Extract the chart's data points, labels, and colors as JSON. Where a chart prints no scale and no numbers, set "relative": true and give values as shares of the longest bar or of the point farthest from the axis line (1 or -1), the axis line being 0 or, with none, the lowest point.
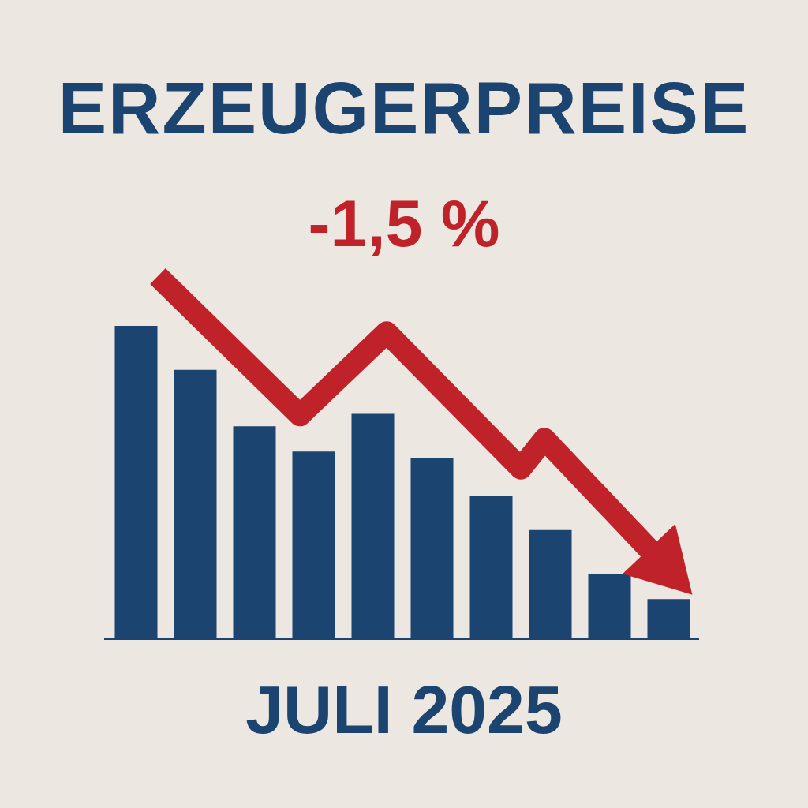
{
  "chart_data": [
    {
      "type": "bar",
      "title": "ERZEUGERPREISE",
      "subtitle": "-1,5 %",
      "annotations": [
        "JULI 2025"
      ],
      "relative": true,
      "categories": [
        null,
        null,
        null,
        null,
        null,
        null,
        null,
        null,
        null,
        null
      ],
      "values": [
        1,
        0.86,
        0.68,
        0.6,
        0.72,
        0.58,
        0.46,
        0.35,
        0.21,
        0.13
      ],
      "color": "#1b4470"
    },
    {
      "type": "line",
      "relative": true,
      "categories": [
        null,
        null,
        null,
        null,
        null,
        null,
        null,
        null,
        null,
        null,
        null,
        null,
        null,
        null,
        null,
        null,
        null,
        null,
        null,
        null,
        null,
        null,
        null,
        null,
        null,
        null,
        null,
        null,
        null,
        null,
        null,
        null,
        null,
        null,
        null,
        null,
        null,
        null,
        null,
        null,
        null,
        null,
        null,
        null,
        null,
        null,
        null,
        null,
        null,
        null,
        null,
        null,
        null,
        null,
        null,
        null,
        null,
        null,
        null,
        null,
        null,
        null,
        null,
        null,
        null,
        null
      ],
      "values": [
        1,
        null,
        null,
        null,
        null,
        null,
        null,
        null,
        null,
        null,
        null,
        null,
        null,
        null,
        null,
        null,
        null,
        null,
        0.53,
        null,
        null,
        null,
        null,
        null,
        null,
        null,
        null,
        null,
        null,
        0.81,
        null,
        null,
        null,
        null,
        null,
        null,
        null,
        null,
        null,
        null,
        null,
        null,
        null,
        null,
        null,
        null,
        0.35,
        null,
        null,
        0.45,
        null,
        null,
        null,
        null,
        null,
        null,
        null,
        null,
        null,
        null,
        null,
        null,
        null,
        null,
        null,
        0
      ],
      "color": "#c0222a"
    }
  ]
}
